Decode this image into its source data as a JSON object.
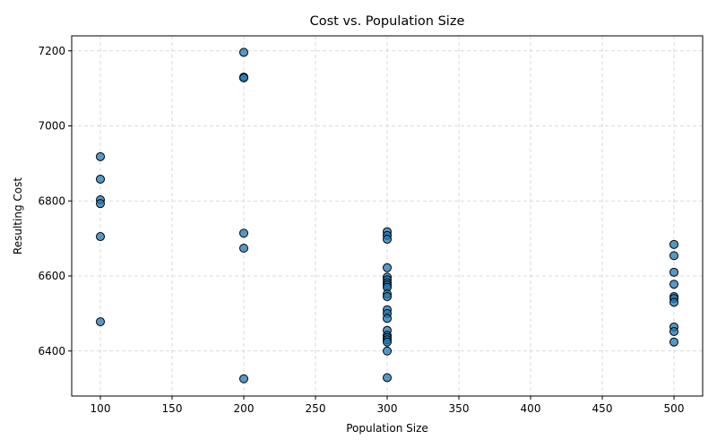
{
  "chart_data": {
    "type": "scatter",
    "title": "Cost vs. Population Size",
    "xlabel": "Population Size",
    "ylabel": "Resulting Cost",
    "xlim": [
      80,
      520
    ],
    "ylim": [
      6280,
      7240
    ],
    "xticks": [
      100,
      150,
      200,
      250,
      300,
      350,
      400,
      450,
      500
    ],
    "yticks": [
      6400,
      6600,
      6800,
      7000,
      7200
    ],
    "grid": true,
    "point_color": "#1f77b4",
    "points": [
      {
        "x": 100,
        "y": 6918
      },
      {
        "x": 100,
        "y": 6858
      },
      {
        "x": 100,
        "y": 6803
      },
      {
        "x": 100,
        "y": 6793
      },
      {
        "x": 100,
        "y": 6705
      },
      {
        "x": 100,
        "y": 6478
      },
      {
        "x": 200,
        "y": 7196
      },
      {
        "x": 200,
        "y": 7130
      },
      {
        "x": 200,
        "y": 7128
      },
      {
        "x": 200,
        "y": 6714
      },
      {
        "x": 200,
        "y": 6674
      },
      {
        "x": 200,
        "y": 6326
      },
      {
        "x": 300,
        "y": 6718
      },
      {
        "x": 300,
        "y": 6708
      },
      {
        "x": 300,
        "y": 6698
      },
      {
        "x": 300,
        "y": 6622
      },
      {
        "x": 300,
        "y": 6597
      },
      {
        "x": 300,
        "y": 6590
      },
      {
        "x": 300,
        "y": 6582
      },
      {
        "x": 300,
        "y": 6576
      },
      {
        "x": 300,
        "y": 6570
      },
      {
        "x": 300,
        "y": 6552
      },
      {
        "x": 300,
        "y": 6545
      },
      {
        "x": 300,
        "y": 6510
      },
      {
        "x": 300,
        "y": 6500
      },
      {
        "x": 300,
        "y": 6487
      },
      {
        "x": 300,
        "y": 6455
      },
      {
        "x": 300,
        "y": 6442
      },
      {
        "x": 300,
        "y": 6436
      },
      {
        "x": 300,
        "y": 6430
      },
      {
        "x": 300,
        "y": 6424
      },
      {
        "x": 300,
        "y": 6400
      },
      {
        "x": 300,
        "y": 6329
      },
      {
        "x": 500,
        "y": 6684
      },
      {
        "x": 500,
        "y": 6654
      },
      {
        "x": 500,
        "y": 6610
      },
      {
        "x": 500,
        "y": 6578
      },
      {
        "x": 500,
        "y": 6545
      },
      {
        "x": 500,
        "y": 6540
      },
      {
        "x": 500,
        "y": 6530
      },
      {
        "x": 500,
        "y": 6464
      },
      {
        "x": 500,
        "y": 6452
      },
      {
        "x": 500,
        "y": 6424
      }
    ]
  }
}
